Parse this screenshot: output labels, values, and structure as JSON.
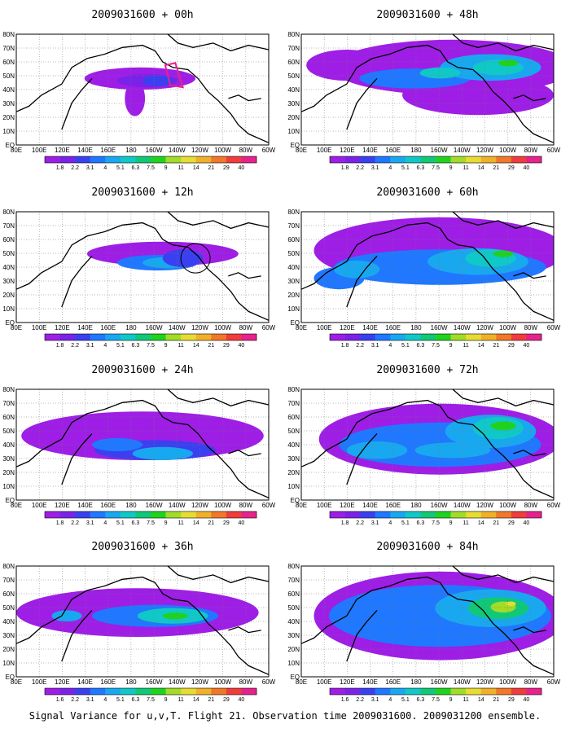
{
  "caption": "Signal Variance for u,v,T. Flight 21. Observation time 2009031600. 2009031200 ensemble.",
  "colorbar": {
    "labels": [
      "1.8",
      "2.2",
      "3.1",
      "4",
      "5.1",
      "6.3",
      "7.5",
      "9",
      "11",
      "14",
      "21",
      "29",
      "40"
    ],
    "bottom_left_labels": [
      "1.6",
      "2.2",
      "3.1",
      "4",
      "5.1",
      "6.3",
      "7.5",
      "9",
      "11",
      "14",
      "21",
      "29",
      "40"
    ],
    "colors": [
      "#9e1ee6",
      "#7a22e8",
      "#3a40f0",
      "#1f78ff",
      "#18a8f0",
      "#10c8c8",
      "#10c878",
      "#20d220",
      "#a0dc28",
      "#e6dc32",
      "#f0b02a",
      "#f07828",
      "#f03c3c",
      "#e6228c"
    ]
  },
  "map": {
    "lon_ticks": [
      "80E",
      "100E",
      "120E",
      "140E",
      "160E",
      "180",
      "160W",
      "140W",
      "120W",
      "100W",
      "80W",
      "60W"
    ],
    "lat_ticks": [
      "EQ",
      "10N",
      "20N",
      "30N",
      "40N",
      "50N",
      "60N",
      "70N",
      "80N"
    ]
  },
  "chart_data": [
    {
      "type": "heatmap",
      "title": "2009031600 + 00h",
      "lead_hours": 0,
      "xlim": [
        "80E",
        "60W"
      ],
      "ylim": [
        "EQ",
        "80N"
      ],
      "color_levels": [
        1.8,
        2.2,
        3.1,
        4,
        5.1,
        6.3,
        7.5,
        9,
        11,
        14,
        21,
        29,
        40
      ],
      "max_level_visible": 4
    },
    {
      "type": "heatmap",
      "title": "2009031600 + 48h",
      "lead_hours": 48,
      "xlim": [
        "80E",
        "60W"
      ],
      "ylim": [
        "EQ",
        "80N"
      ],
      "color_levels": [
        1.8,
        2.2,
        3.1,
        4,
        5.1,
        6.3,
        7.5,
        9,
        11,
        14,
        21,
        29,
        40
      ],
      "max_level_visible": 9
    },
    {
      "type": "heatmap",
      "title": "2009031600 + 12h",
      "lead_hours": 12,
      "xlim": [
        "80E",
        "60W"
      ],
      "ylim": [
        "EQ",
        "80N"
      ],
      "color_levels": [
        1.8,
        2.2,
        3.1,
        4,
        5.1,
        6.3,
        7.5,
        9,
        11,
        14,
        21,
        29,
        40
      ],
      "max_level_visible": 5.1
    },
    {
      "type": "heatmap",
      "title": "2009031600 + 60h",
      "lead_hours": 60,
      "xlim": [
        "80E",
        "60W"
      ],
      "ylim": [
        "EQ",
        "80N"
      ],
      "color_levels": [
        1.8,
        2.2,
        3.1,
        4,
        5.1,
        6.3,
        7.5,
        9,
        11,
        14,
        21,
        29,
        40
      ],
      "max_level_visible": 9
    },
    {
      "type": "heatmap",
      "title": "2009031600 + 24h",
      "lead_hours": 24,
      "xlim": [
        "80E",
        "60W"
      ],
      "ylim": [
        "EQ",
        "80N"
      ],
      "color_levels": [
        1.8,
        2.2,
        3.1,
        4,
        5.1,
        6.3,
        7.5,
        9,
        11,
        14,
        21,
        29,
        40
      ],
      "max_level_visible": 6.3
    },
    {
      "type": "heatmap",
      "title": "2009031600 + 72h",
      "lead_hours": 72,
      "xlim": [
        "80E",
        "60W"
      ],
      "ylim": [
        "EQ",
        "80N"
      ],
      "color_levels": [
        1.8,
        2.2,
        3.1,
        4,
        5.1,
        6.3,
        7.5,
        9,
        11,
        14,
        21,
        29,
        40
      ],
      "max_level_visible": 11
    },
    {
      "type": "heatmap",
      "title": "2009031600 + 36h",
      "lead_hours": 36,
      "xlim": [
        "80E",
        "60W"
      ],
      "ylim": [
        "EQ",
        "80N"
      ],
      "color_levels": [
        1.6,
        2.2,
        3.1,
        4,
        5.1,
        6.3,
        7.5,
        9,
        11,
        14,
        21,
        29,
        40
      ],
      "max_level_visible": 9
    },
    {
      "type": "heatmap",
      "title": "2009031600 + 84h",
      "lead_hours": 84,
      "xlim": [
        "80E",
        "60W"
      ],
      "ylim": [
        "EQ",
        "80N"
      ],
      "color_levels": [
        1.6,
        2.2,
        3.1,
        4,
        5.1,
        6.3,
        7.5,
        9,
        11,
        14,
        21,
        29,
        40
      ],
      "max_level_visible": 14
    }
  ]
}
